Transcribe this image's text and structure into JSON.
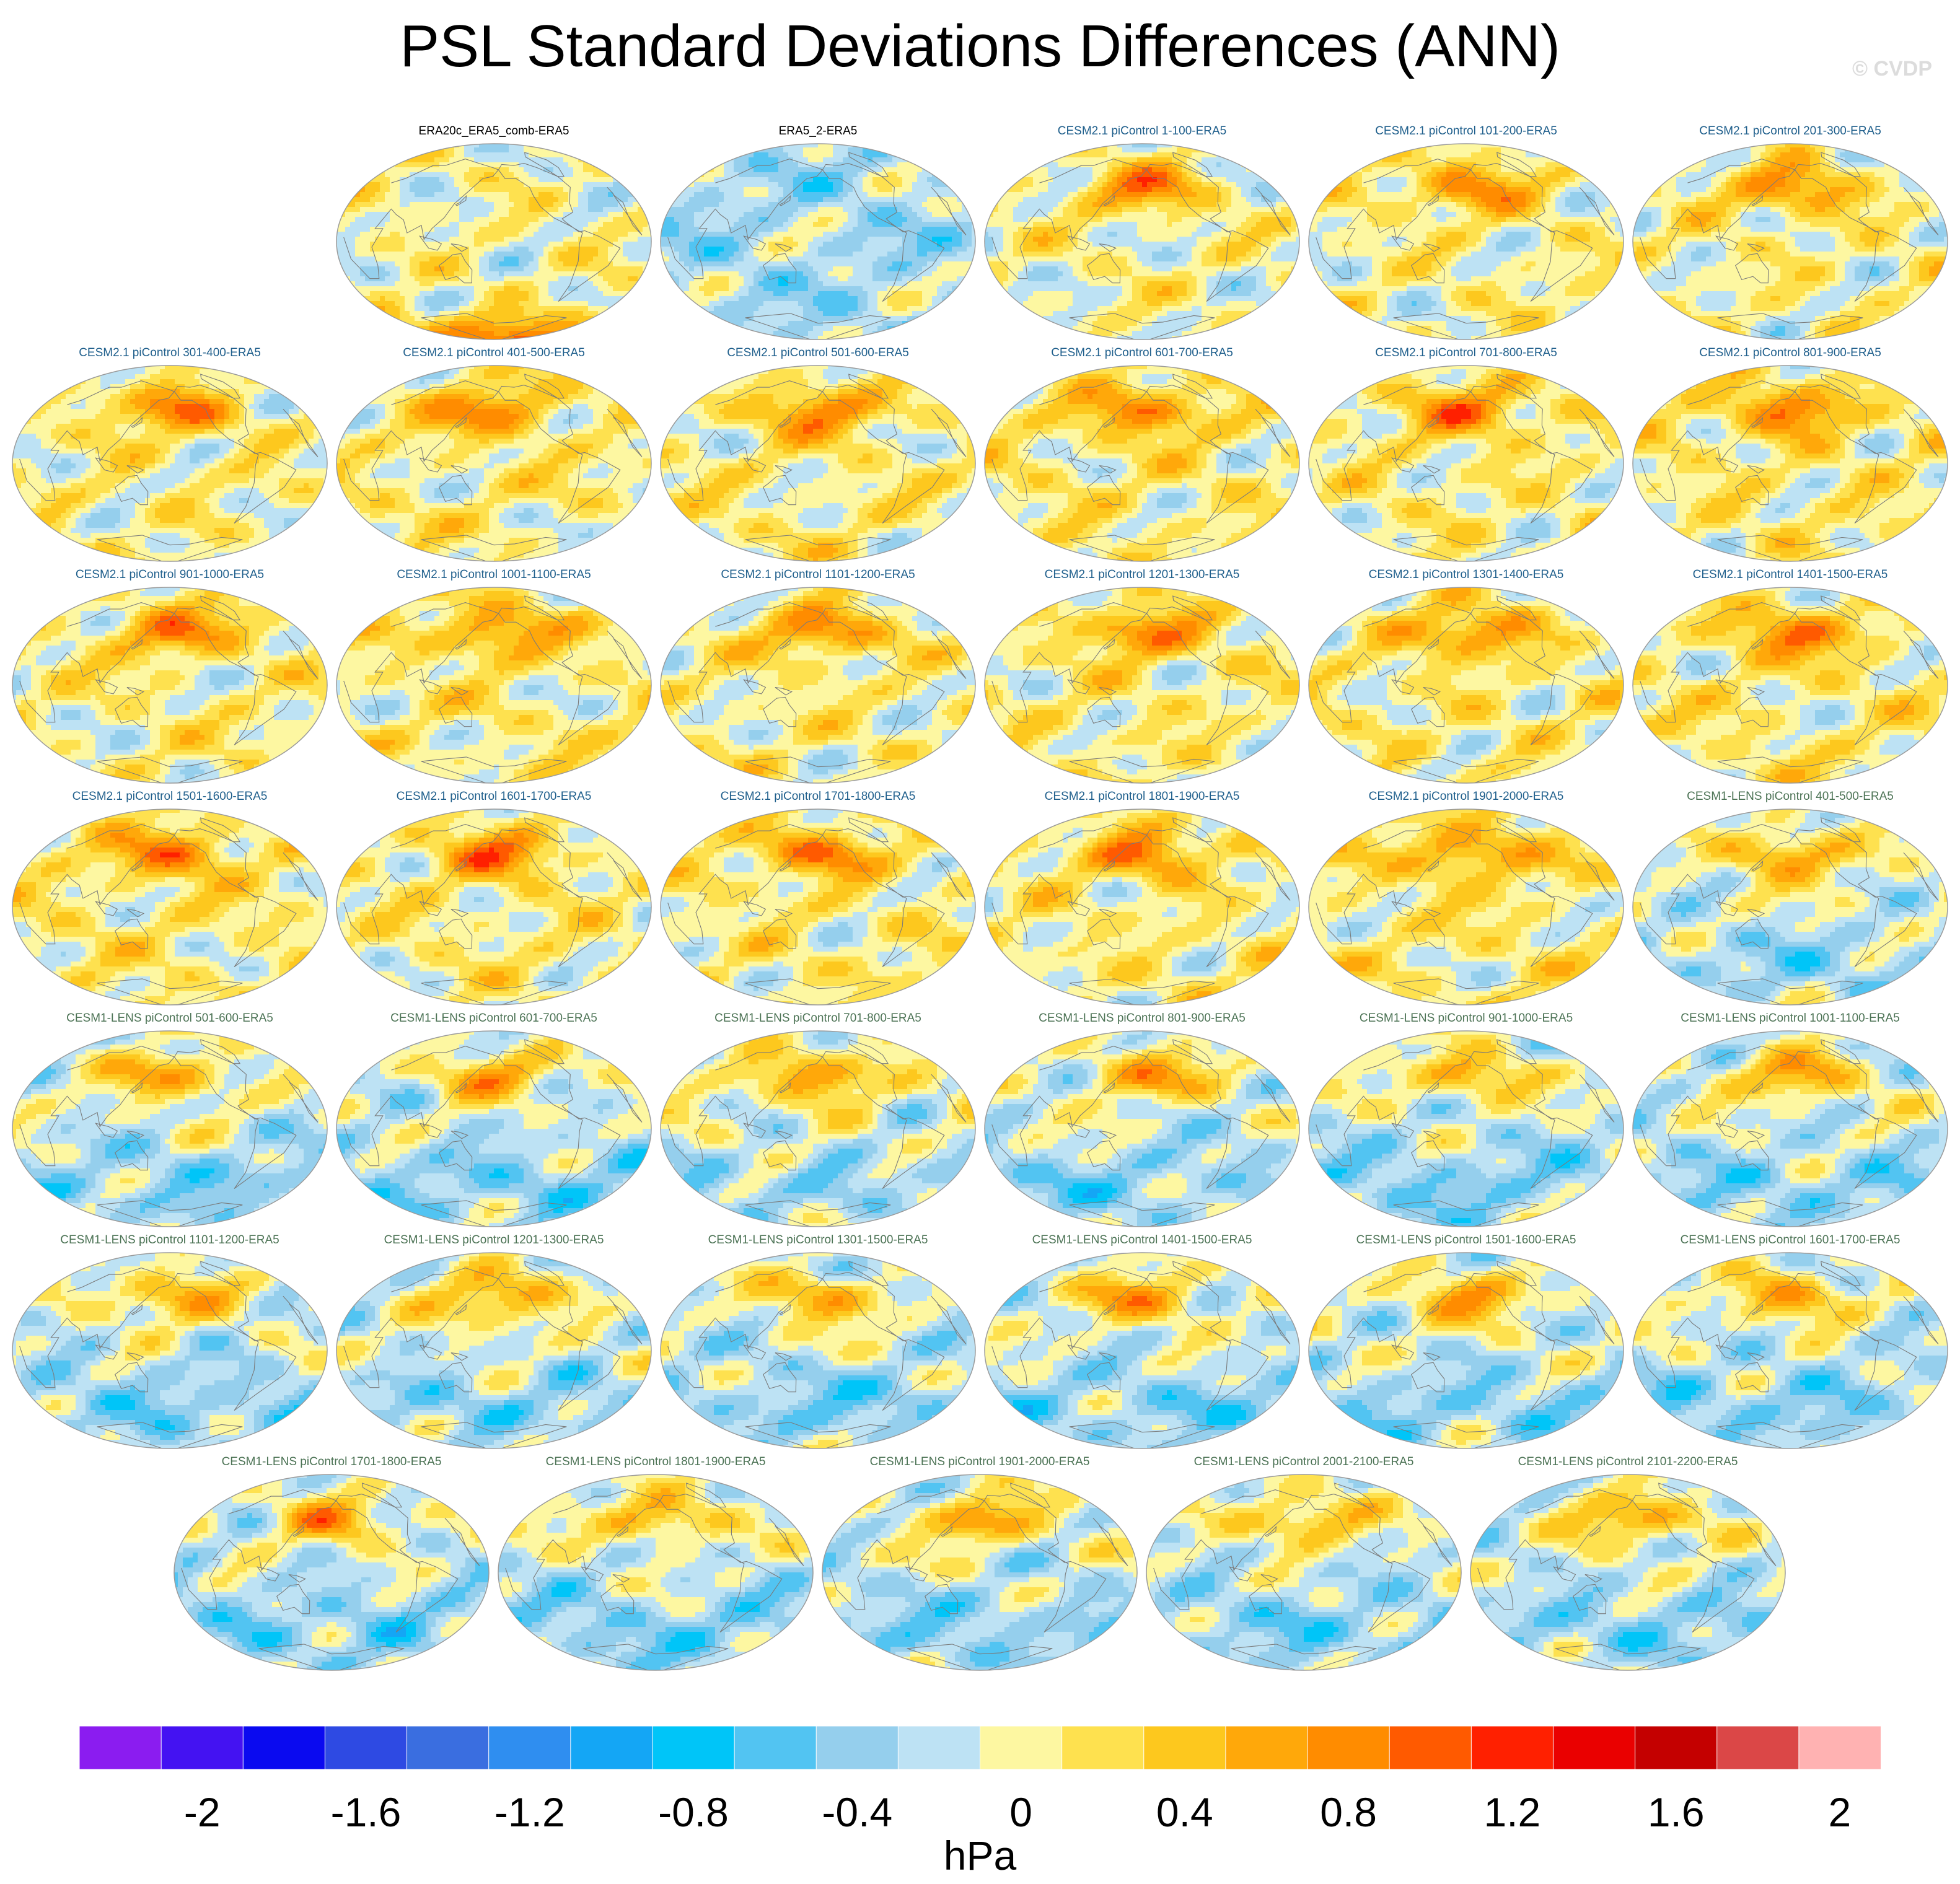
{
  "title": "PSL Standard Deviations Differences (ANN)",
  "watermark": "© CVDP",
  "chart_data": {
    "type": "map-panel-grid",
    "title": "PSL Standard Deviations Differences (ANN)",
    "variable": "PSL",
    "season": "ANN",
    "units": "hPa",
    "projection": "Robinson, Pacific-centered",
    "panels": [
      {
        "name": "ERA20c_ERA5_comb-ERA5",
        "group": "obs",
        "seed": 3,
        "bias": 0.1,
        "southern_high": true
      },
      {
        "name": "ERA5_2-ERA5",
        "group": "obs",
        "seed": 5,
        "bias": -0.18
      },
      {
        "name": "CESM2.1 piControl 1-100-ERA5",
        "group": "cesm2",
        "seed": 11,
        "bias": 0.1
      },
      {
        "name": "CESM2.1 piControl 101-200-ERA5",
        "group": "cesm2",
        "seed": 12,
        "bias": 0.12
      },
      {
        "name": "CESM2.1 piControl 201-300-ERA5",
        "group": "cesm2",
        "seed": 13,
        "bias": 0.12
      },
      {
        "name": "CESM2.1 piControl 301-400-ERA5",
        "group": "cesm2",
        "seed": 14,
        "bias": 0.14
      },
      {
        "name": "CESM2.1 piControl 401-500-ERA5",
        "group": "cesm2",
        "seed": 15,
        "bias": 0.16
      },
      {
        "name": "CESM2.1 piControl 501-600-ERA5",
        "group": "cesm2",
        "seed": 16,
        "bias": 0.16
      },
      {
        "name": "CESM2.1 piControl 601-700-ERA5",
        "group": "cesm2",
        "seed": 17,
        "bias": 0.18
      },
      {
        "name": "CESM2.1 piControl 701-800-ERA5",
        "group": "cesm2",
        "seed": 18,
        "bias": 0.16
      },
      {
        "name": "CESM2.1 piControl 801-900-ERA5",
        "group": "cesm2",
        "seed": 19,
        "bias": 0.18
      },
      {
        "name": "CESM2.1 piControl 901-1000-ERA5",
        "group": "cesm2",
        "seed": 20,
        "bias": 0.14
      },
      {
        "name": "CESM2.1 piControl 1001-1100-ERA5",
        "group": "cesm2",
        "seed": 21,
        "bias": 0.16
      },
      {
        "name": "CESM2.1 piControl 1101-1200-ERA5",
        "group": "cesm2",
        "seed": 22,
        "bias": 0.14
      },
      {
        "name": "CESM2.1 piControl 1201-1300-ERA5",
        "group": "cesm2",
        "seed": 23,
        "bias": 0.16
      },
      {
        "name": "CESM2.1 piControl 1301-1400-ERA5",
        "group": "cesm2",
        "seed": 24,
        "bias": 0.16
      },
      {
        "name": "CESM2.1 piControl 1401-1500-ERA5",
        "group": "cesm2",
        "seed": 25,
        "bias": 0.18
      },
      {
        "name": "CESM2.1 piControl 1501-1600-ERA5",
        "group": "cesm2",
        "seed": 26,
        "bias": 0.18
      },
      {
        "name": "CESM2.1 piControl 1601-1700-ERA5",
        "group": "cesm2",
        "seed": 27,
        "bias": 0.16
      },
      {
        "name": "CESM2.1 piControl 1701-1800-ERA5",
        "group": "cesm2",
        "seed": 28,
        "bias": 0.16
      },
      {
        "name": "CESM2.1 piControl 1801-1900-ERA5",
        "group": "cesm2",
        "seed": 29,
        "bias": 0.16
      },
      {
        "name": "CESM2.1 piControl 1901-2000-ERA5",
        "group": "cesm2",
        "seed": 30,
        "bias": 0.18
      },
      {
        "name": "CESM1-LENS piControl 401-500-ERA5",
        "group": "cesm1",
        "seed": 41,
        "bias": 0.02
      },
      {
        "name": "CESM1-LENS piControl 501-600-ERA5",
        "group": "cesm1",
        "seed": 42,
        "bias": -0.02
      },
      {
        "name": "CESM1-LENS piControl 601-700-ERA5",
        "group": "cesm1",
        "seed": 43,
        "bias": -0.04
      },
      {
        "name": "CESM1-LENS piControl 701-800-ERA5",
        "group": "cesm1",
        "seed": 44,
        "bias": 0.04
      },
      {
        "name": "CESM1-LENS piControl 801-900-ERA5",
        "group": "cesm1",
        "seed": 45,
        "bias": -0.02
      },
      {
        "name": "CESM1-LENS piControl 901-1000-ERA5",
        "group": "cesm1",
        "seed": 46,
        "bias": -0.04
      },
      {
        "name": "CESM1-LENS piControl 1001-1100-ERA5",
        "group": "cesm1",
        "seed": 47,
        "bias": -0.02
      },
      {
        "name": "CESM1-LENS piControl 1101-1200-ERA5",
        "group": "cesm1",
        "seed": 48,
        "bias": -0.04
      },
      {
        "name": "CESM1-LENS piControl 1201-1300-ERA5",
        "group": "cesm1",
        "seed": 49,
        "bias": 0.0
      },
      {
        "name": "CESM1-LENS piControl 1301-1500-ERA5",
        "group": "cesm1",
        "seed": 50,
        "bias": -0.04
      },
      {
        "name": "CESM1-LENS piControl 1401-1500-ERA5",
        "group": "cesm1",
        "seed": 51,
        "bias": -0.02
      },
      {
        "name": "CESM1-LENS piControl 1501-1600-ERA5",
        "group": "cesm1",
        "seed": 52,
        "bias": -0.02
      },
      {
        "name": "CESM1-LENS piControl 1601-1700-ERA5",
        "group": "cesm1",
        "seed": 53,
        "bias": -0.04
      },
      {
        "name": "CESM1-LENS piControl 1701-1800-ERA5",
        "group": "cesm1",
        "seed": 54,
        "bias": -0.04
      },
      {
        "name": "CESM1-LENS piControl 1801-1900-ERA5",
        "group": "cesm1",
        "seed": 55,
        "bias": -0.04
      },
      {
        "name": "CESM1-LENS piControl 1901-2000-ERA5",
        "group": "cesm1",
        "seed": 56,
        "bias": -0.02
      },
      {
        "name": "CESM1-LENS piControl 2001-2100-ERA5",
        "group": "cesm1",
        "seed": 57,
        "bias": -0.04
      },
      {
        "name": "CESM1-LENS piControl 2101-2200-ERA5",
        "group": "cesm1",
        "seed": 58,
        "bias": -0.02
      }
    ],
    "colorbar": {
      "label": "hPa",
      "levels": [
        -2.2,
        -2.0,
        -1.8,
        -1.6,
        -1.4,
        -1.2,
        -1.0,
        -0.8,
        -0.6,
        -0.4,
        -0.2,
        0,
        0.2,
        0.4,
        0.6,
        0.8,
        1.0,
        1.2,
        1.4,
        1.6,
        1.8,
        2.0,
        2.2
      ],
      "colors": [
        "#8b1cf0",
        "#4412f2",
        "#0a0af0",
        "#2e4ae3",
        "#3a6ee0",
        "#2f8ef0",
        "#14a6f5",
        "#00c5f8",
        "#52c4f2",
        "#95cfed",
        "#bde2f4",
        "#fdf7a1",
        "#fee14f",
        "#fdc81e",
        "#ffa80a",
        "#ff8c00",
        "#ff5a00",
        "#ff2000",
        "#ea0000",
        "#c40000",
        "#db4747",
        "#ffb2b2"
      ],
      "tick_values": [
        -2,
        -1.6,
        -1.2,
        -0.8,
        -0.4,
        0,
        0.4,
        0.8,
        1.2,
        1.6,
        2
      ],
      "tick_labels": [
        "-2",
        "-1.6",
        "-1.2",
        "-0.8",
        "-0.4",
        "0",
        "0.4",
        "0.8",
        "1.2",
        "1.6",
        "2"
      ]
    }
  }
}
